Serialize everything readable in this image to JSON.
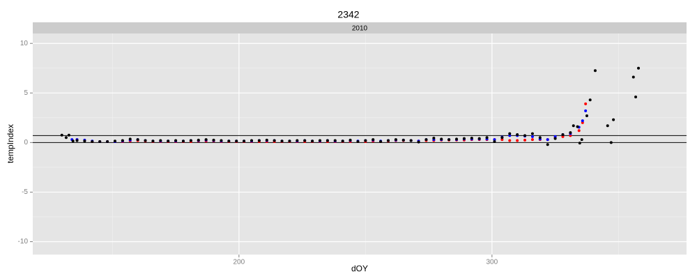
{
  "chart_data": {
    "type": "scatter",
    "title": "2342",
    "facet_label": "2010",
    "x_label": "dOY",
    "y_label": "tempIndex",
    "xlim": [
      118.5,
      376.9
    ],
    "ylim": [
      -11.3,
      11.0
    ],
    "xticks": [
      200,
      300
    ],
    "yticks": [
      -10,
      -5,
      0,
      5,
      10
    ],
    "xminor": [
      150,
      250,
      350
    ],
    "yminor": [
      -7.5,
      -2.5,
      2.5,
      7.5
    ],
    "hlines": [
      0,
      0.7
    ],
    "hline_color": "#000000",
    "grid": true,
    "series": [
      {
        "color": "#ff0000",
        "x": [
          136,
          139,
          142,
          145,
          148,
          151,
          154,
          157,
          160,
          163,
          166,
          169,
          172,
          175,
          178,
          181,
          184,
          187,
          190,
          193,
          196,
          199,
          202,
          205,
          208,
          211,
          214,
          217,
          220,
          223,
          226,
          229,
          232,
          235,
          238,
          241,
          244,
          247,
          250,
          253,
          256,
          259,
          262,
          265,
          268,
          271,
          274,
          277,
          280,
          283,
          286,
          289,
          292,
          295,
          298,
          301,
          304,
          307,
          310,
          313,
          316,
          319,
          322,
          325,
          328,
          331,
          334.4,
          335.8,
          337
        ],
        "values": [
          0.3,
          0.2,
          0.1,
          0.1,
          0.1,
          0.1,
          0.1,
          0.15,
          0.2,
          0.15,
          0.1,
          0.1,
          0.1,
          0.1,
          0.1,
          0.1,
          0.15,
          0.15,
          0.15,
          0.1,
          0.1,
          0.1,
          0.1,
          0.1,
          0.1,
          0.1,
          0.1,
          0.1,
          0.1,
          0.1,
          0.1,
          0.1,
          0.1,
          0.1,
          0.1,
          0.1,
          0.1,
          0.1,
          0.1,
          0.15,
          0.1,
          0.15,
          0.2,
          0.2,
          0.2,
          0.15,
          0.2,
          0.2,
          0.25,
          0.25,
          0.25,
          0.25,
          0.3,
          0.3,
          0.3,
          0.3,
          0.3,
          0.2,
          0.2,
          0.25,
          0.3,
          0.3,
          0.3,
          0.5,
          0.6,
          0.7,
          1.2,
          2.0,
          3.9
        ]
      },
      {
        "color": "#0000ff",
        "x": [
          134,
          136,
          139,
          142,
          145,
          148,
          151,
          154,
          157,
          160,
          163,
          166,
          169,
          172,
          175,
          178,
          181,
          184,
          187,
          190,
          193,
          196,
          199,
          202,
          205,
          208,
          211,
          214,
          217,
          220,
          223,
          226,
          229,
          232,
          235,
          238,
          241,
          244,
          247,
          250,
          253,
          256,
          259,
          262,
          265,
          268,
          271,
          274,
          277,
          280,
          283,
          286,
          289,
          292,
          295,
          298,
          301,
          304,
          307,
          310,
          313,
          316,
          319,
          322,
          325,
          328,
          331,
          334.4,
          335.8,
          337
        ],
        "values": [
          0.3,
          0.3,
          0.25,
          0.15,
          0.1,
          0.1,
          0.1,
          0.15,
          0.25,
          0.3,
          0.2,
          0.15,
          0.15,
          0.15,
          0.15,
          0.15,
          0.2,
          0.2,
          0.25,
          0.2,
          0.15,
          0.15,
          0.15,
          0.15,
          0.15,
          0.2,
          0.2,
          0.2,
          0.15,
          0.15,
          0.15,
          0.2,
          0.15,
          0.15,
          0.2,
          0.15,
          0.15,
          0.2,
          0.15,
          0.2,
          0.25,
          0.15,
          0.2,
          0.25,
          0.25,
          0.2,
          0.15,
          0.3,
          0.3,
          0.3,
          0.3,
          0.3,
          0.35,
          0.35,
          0.35,
          0.35,
          0.3,
          0.55,
          0.7,
          0.7,
          0.65,
          0.6,
          0.35,
          0.3,
          0.6,
          0.8,
          0.9,
          1.55,
          2.2,
          3.2
        ]
      },
      {
        "color": "#000000",
        "x": [
          130,
          131.7,
          132.8,
          134.4,
          136,
          139,
          142,
          145,
          148,
          151,
          154,
          157,
          160,
          163,
          166,
          169,
          172,
          175,
          178,
          181,
          184,
          187,
          190,
          193,
          196,
          199,
          202,
          205,
          208,
          211,
          214,
          217,
          220,
          223,
          226,
          229,
          232,
          235,
          238,
          241,
          244,
          247,
          250,
          253,
          256,
          259,
          262,
          265,
          268,
          271,
          274,
          277,
          280,
          283,
          286,
          289,
          292,
          295,
          298,
          301,
          304,
          307,
          310,
          313,
          316,
          319,
          322,
          325,
          328,
          331,
          332.2,
          333.8,
          334.7,
          335.5,
          337.5,
          338.8,
          340.8,
          345.7,
          347.1,
          348,
          355.9,
          356.8,
          357.9
        ],
        "values": [
          0.75,
          0.5,
          0.75,
          0.15,
          0.2,
          0.15,
          0.1,
          0.1,
          0.1,
          0.15,
          0.2,
          0.35,
          0.3,
          0.2,
          0.15,
          0.2,
          0.15,
          0.2,
          0.15,
          0.2,
          0.25,
          0.3,
          0.25,
          0.2,
          0.15,
          0.15,
          0.15,
          0.2,
          0.2,
          0.25,
          0.2,
          0.15,
          0.15,
          0.2,
          0.2,
          0.15,
          0.2,
          0.2,
          0.2,
          0.15,
          0.25,
          0.1,
          0.2,
          0.3,
          0.1,
          0.2,
          0.3,
          0.25,
          0.2,
          0.05,
          0.3,
          0.45,
          0.35,
          0.3,
          0.35,
          0.4,
          0.45,
          0.4,
          0.5,
          0.1,
          0.5,
          0.9,
          0.8,
          0.7,
          0.9,
          0.5,
          -0.2,
          0.4,
          0.8,
          1.0,
          1.7,
          1.6,
          -0.05,
          0.3,
          2.7,
          4.3,
          7.25,
          1.7,
          0,
          2.3,
          6.6,
          4.6,
          7.5
        ]
      }
    ]
  }
}
